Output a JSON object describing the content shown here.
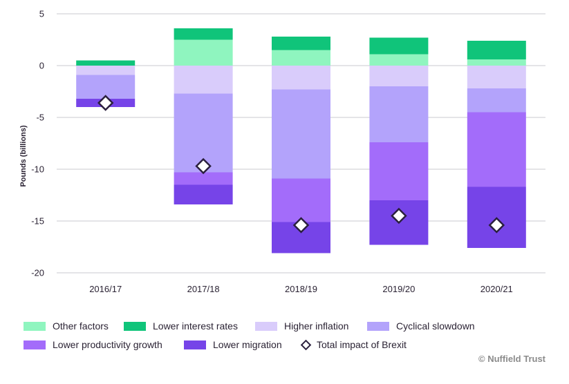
{
  "chart_data": {
    "type": "bar",
    "stacked": true,
    "title": "",
    "xlabel": "",
    "ylabel": "Pounds (billions)",
    "ylim": [
      -20,
      5
    ],
    "yticks": [
      5,
      0,
      -5,
      -10,
      -15,
      -20
    ],
    "grid": true,
    "legend_position": "bottom",
    "categories": [
      "2016/17",
      "2017/18",
      "2018/19",
      "2019/20",
      "2020/21"
    ],
    "series": [
      {
        "name": "Other factors",
        "color": "#8ff5bf",
        "values": [
          0,
          2.5,
          1.5,
          1.1,
          0.6
        ]
      },
      {
        "name": "Lower interest rates",
        "color": "#10c47a",
        "values": [
          0.5,
          1.1,
          1.3,
          1.6,
          1.8
        ]
      },
      {
        "name": "Higher inflation",
        "color": "#d9ccfb",
        "values": [
          -0.9,
          -2.7,
          -2.3,
          -2.0,
          -2.2
        ]
      },
      {
        "name": "Cyclical slowdown",
        "color": "#b3a3fb",
        "values": [
          -2.3,
          -7.6,
          -8.6,
          -5.4,
          -2.3
        ]
      },
      {
        "name": "Lower productivity growth",
        "color": "#a36cfa",
        "values": [
          0,
          -1.2,
          -4.2,
          -5.6,
          -7.2
        ]
      },
      {
        "name": "Lower migration",
        "color": "#7644e8",
        "values": [
          -0.8,
          -1.9,
          -3.0,
          -4.3,
          -5.9
        ]
      }
    ],
    "total": {
      "name": "Total impact of Brexit",
      "values": [
        -3.6,
        -9.7,
        -15.4,
        -14.5,
        -15.4
      ]
    }
  },
  "legend": {
    "rows": [
      [
        "Other factors",
        "Lower interest rates",
        "Higher inflation",
        "Cyclical slowdown"
      ],
      [
        "Lower productivity growth",
        "Lower migration",
        "Total impact of Brexit"
      ]
    ]
  },
  "source": "© Nuffield Trust"
}
